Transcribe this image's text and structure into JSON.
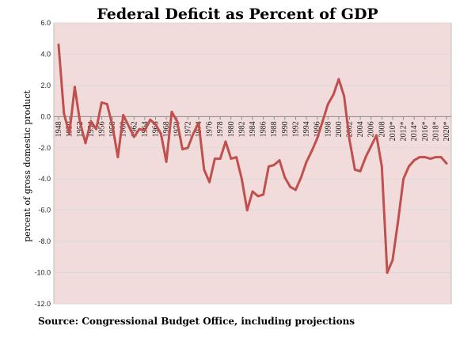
{
  "chart_data": {
    "type": "line",
    "title": "Federal Deficit as Percent of GDP",
    "ylabel": "percent of gross domestic product",
    "source": "Source: Congressional Budget Office, including projections",
    "ylim": [
      -12,
      6
    ],
    "yticks": [
      6,
      4,
      2,
      0,
      -2,
      -4,
      -6,
      -8,
      -10,
      -12
    ],
    "ytick_labels": [
      "6.0",
      "4.0",
      "2.0",
      "0.0",
      "-2.0",
      "-4.0",
      "-6.0",
      "-8.0",
      "-10.0",
      "-12.0"
    ],
    "xtick_labels": [
      "1948",
      "1950",
      "1952",
      "1954",
      "1956",
      "1958",
      "1960",
      "1962",
      "1964",
      "1966",
      "1968",
      "1970",
      "1972",
      "1974",
      "1976",
      "1978",
      "1980",
      "1982",
      "1984",
      "1986",
      "1988",
      "1990",
      "1992",
      "1994",
      "1996",
      "1998",
      "2000",
      "2002",
      "2004",
      "2006",
      "2008",
      "2010*",
      "2012*",
      "2014*",
      "2016*",
      "2018*",
      "2020*"
    ],
    "grid": true,
    "colors": {
      "line": "#c0504d",
      "plot_bg": "#f2dcdb",
      "grid": "#d9d9d9"
    },
    "series": [
      {
        "x": [
          1948,
          1949,
          1950,
          1951,
          1952,
          1953,
          1954,
          1955,
          1956,
          1957,
          1958,
          1959,
          1960,
          1961,
          1962,
          1963,
          1964,
          1965,
          1966,
          1967,
          1968,
          1969,
          1970,
          1971,
          1972,
          1973,
          1974,
          1975,
          1976,
          1977,
          1978,
          1979,
          1980,
          1981,
          1982,
          1983,
          1984,
          1985,
          1986,
          1987,
          1988,
          1989,
          1990,
          1991,
          1992,
          1993,
          1994,
          1995,
          1996,
          1997,
          1998,
          1999,
          2000,
          2001,
          2002,
          2003,
          2004,
          2005,
          2006,
          2007,
          2008,
          2009,
          2010,
          2011,
          2012,
          2013,
          2014,
          2015,
          2016,
          2017,
          2018,
          2019,
          2020
        ],
        "values": [
          4.6,
          0.2,
          -1.1,
          1.9,
          -0.4,
          -1.7,
          -0.3,
          -0.8,
          0.9,
          0.8,
          -0.6,
          -2.6,
          0.1,
          -0.6,
          -1.3,
          -0.8,
          -0.9,
          -0.2,
          -0.5,
          -1.1,
          -2.9,
          0.3,
          -0.3,
          -2.1,
          -2.0,
          -1.1,
          -0.4,
          -3.4,
          -4.2,
          -2.7,
          -2.7,
          -1.6,
          -2.7,
          -2.6,
          -4.0,
          -6.0,
          -4.8,
          -5.1,
          -5.0,
          -3.2,
          -3.1,
          -2.8,
          -3.9,
          -4.5,
          -4.7,
          -3.9,
          -2.9,
          -2.2,
          -1.4,
          -0.3,
          0.8,
          1.4,
          2.4,
          1.3,
          -1.5,
          -3.4,
          -3.5,
          -2.6,
          -1.9,
          -1.2,
          -3.2,
          -10.0,
          -9.2,
          -6.7,
          -4.0,
          -3.2,
          -2.8,
          -2.6,
          -2.6,
          -2.7,
          -2.6,
          -2.6,
          -3.0
        ]
      }
    ]
  }
}
